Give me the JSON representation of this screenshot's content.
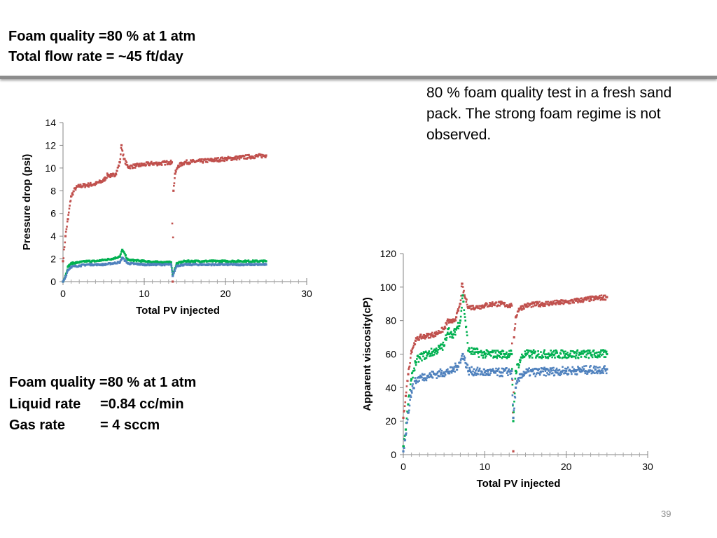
{
  "header": {
    "line1": "Foam quality =80 % at 1 atm",
    "line2": "Total flow rate = ~45 ft/day"
  },
  "note": "80 % foam quality test in a fresh sand pack. The strong foam regime is not observed.",
  "conditions": [
    "Foam quality =80 % at 1 atm",
    "Liquid rate     =0.84 cc/min",
    "Gas rate         = 4 sccm"
  ],
  "page_number": "39",
  "series_colors": [
    "#c0504d",
    "#00b050",
    "#4f81bd"
  ],
  "chart_data": [
    {
      "type": "scatter",
      "xlabel": "Total PV injected",
      "ylabel": "Pressure drop (psi)",
      "xlim": [
        0,
        30
      ],
      "ylim": [
        0,
        14
      ],
      "xticks": [
        "0",
        "10",
        "20",
        "30"
      ],
      "yticks": [
        "0",
        "2",
        "4",
        "6",
        "8",
        "10",
        "12",
        "14"
      ],
      "gridlines": false,
      "legend": "none",
      "series": [
        {
          "color": "#c0504d",
          "x": [
            0.0,
            0.3,
            0.6,
            1.0,
            1.5,
            2.0,
            3.0,
            4.0,
            5.0,
            5.5,
            6.0,
            6.5,
            7.0,
            7.2,
            7.5,
            8.0,
            9.0,
            10.0,
            11.0,
            12.0,
            13.0,
            13.4,
            13.5,
            13.6,
            13.8,
            14.2,
            15.0,
            17.0,
            20.0,
            23.0,
            25.0
          ],
          "y": [
            1.8,
            4.0,
            5.5,
            7.5,
            8.2,
            8.4,
            8.5,
            8.6,
            8.9,
            9.4,
            9.3,
            9.5,
            10.5,
            12.0,
            10.8,
            10.1,
            10.2,
            10.3,
            10.4,
            10.4,
            10.5,
            10.5,
            0.0,
            8.0,
            9.5,
            10.2,
            10.5,
            10.6,
            10.8,
            11.0,
            11.1
          ]
        },
        {
          "color": "#00b050",
          "x": [
            0.0,
            0.3,
            0.6,
            1.0,
            2.0,
            3.0,
            4.0,
            5.0,
            6.0,
            7.0,
            7.3,
            8.0,
            10.0,
            12.0,
            13.3,
            13.5,
            14.0,
            15.0,
            20.0,
            25.0
          ],
          "y": [
            0.0,
            0.5,
            1.3,
            1.6,
            1.7,
            1.8,
            1.8,
            1.9,
            2.0,
            2.2,
            2.8,
            1.9,
            1.8,
            1.7,
            1.7,
            0.6,
            1.6,
            1.8,
            1.8,
            1.8
          ]
        },
        {
          "color": "#4f81bd",
          "x": [
            0.0,
            0.3,
            0.6,
            1.0,
            2.0,
            3.0,
            4.0,
            5.0,
            6.0,
            7.0,
            7.3,
            8.0,
            10.0,
            12.0,
            13.3,
            13.5,
            14.0,
            15.0,
            20.0,
            25.0
          ],
          "y": [
            0.0,
            0.4,
            1.0,
            1.3,
            1.4,
            1.5,
            1.5,
            1.5,
            1.6,
            1.7,
            2.1,
            1.6,
            1.5,
            1.5,
            1.5,
            0.5,
            1.4,
            1.5,
            1.5,
            1.5
          ]
        }
      ]
    },
    {
      "type": "scatter",
      "xlabel": "Total PV injected",
      "ylabel": "Apparent viscosity(cP)",
      "xlim": [
        0,
        30
      ],
      "ylim": [
        0,
        120
      ],
      "xticks": [
        "0",
        "10",
        "20",
        "30"
      ],
      "yticks": [
        "0",
        "20",
        "40",
        "60",
        "80",
        "100",
        "120"
      ],
      "gridlines": false,
      "legend": "none",
      "series": [
        {
          "color": "#c0504d",
          "x": [
            0.0,
            0.3,
            0.6,
            1.0,
            1.5,
            2.0,
            3.0,
            4.0,
            5.0,
            5.5,
            6.0,
            6.5,
            7.0,
            7.2,
            7.5,
            8.0,
            9.0,
            10.0,
            11.0,
            12.0,
            13.0,
            13.3,
            13.5,
            13.6,
            13.8,
            14.2,
            15.0,
            17.0,
            20.0,
            23.0,
            25.0
          ],
          "y": [
            22,
            35,
            48,
            62,
            68,
            70,
            71,
            72,
            75,
            80,
            79,
            82,
            90,
            102,
            95,
            88,
            88,
            89,
            90,
            90,
            89,
            89,
            2,
            70,
            82,
            87,
            89,
            90,
            91,
            93,
            94
          ]
        },
        {
          "color": "#00b050",
          "x": [
            0.0,
            0.3,
            0.6,
            1.0,
            1.5,
            2.0,
            3.0,
            4.0,
            5.0,
            5.5,
            6.0,
            7.0,
            7.3,
            8.0,
            10.0,
            12.0,
            13.3,
            13.5,
            13.8,
            14.5,
            15.0,
            20.0,
            25.0
          ],
          "y": [
            5,
            15,
            30,
            45,
            55,
            58,
            60,
            62,
            65,
            75,
            70,
            80,
            95,
            62,
            60,
            60,
            60,
            20,
            50,
            58,
            60,
            60,
            60
          ]
        },
        {
          "color": "#4f81bd",
          "x": [
            0.0,
            0.3,
            0.6,
            1.0,
            1.5,
            2.0,
            3.0,
            4.0,
            5.0,
            6.0,
            7.0,
            7.3,
            8.0,
            10.0,
            12.0,
            13.3,
            13.5,
            13.8,
            14.5,
            15.0,
            20.0,
            25.0
          ],
          "y": [
            2,
            12,
            25,
            38,
            44,
            46,
            47,
            48,
            49,
            50,
            55,
            60,
            50,
            49,
            49,
            50,
            22,
            40,
            48,
            49,
            50,
            51
          ]
        }
      ]
    }
  ]
}
